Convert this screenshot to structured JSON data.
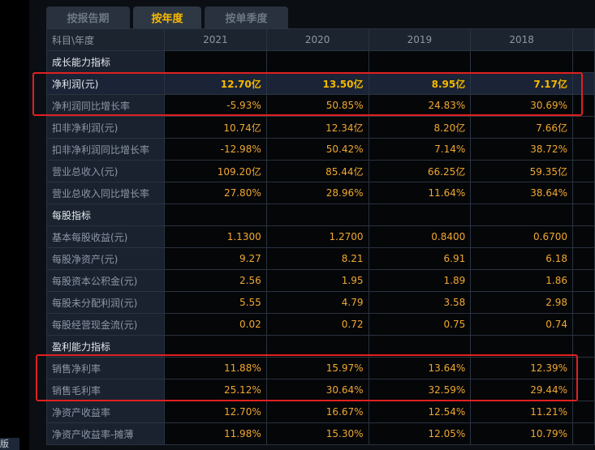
{
  "side_badge": "版",
  "tabs": [
    {
      "label": "按报告期"
    },
    {
      "label": "按年度",
      "active": true
    },
    {
      "label": "按单季度"
    }
  ],
  "header": {
    "label": "科目\\年度",
    "years": [
      "2021",
      "2020",
      "2019",
      "2018"
    ]
  },
  "rows": [
    {
      "label": "成长能力指标",
      "section": true,
      "values": [
        "",
        "",
        "",
        ""
      ]
    },
    {
      "label": "净利润(元)",
      "highlight": true,
      "values": [
        "12.70亿",
        "13.50亿",
        "8.95亿",
        "7.17亿"
      ]
    },
    {
      "label": "净利润同比增长率",
      "values": [
        "-5.93%",
        "50.85%",
        "24.83%",
        "30.69%"
      ]
    },
    {
      "label": "扣非净利润(元)",
      "values": [
        "10.74亿",
        "12.34亿",
        "8.20亿",
        "7.66亿"
      ]
    },
    {
      "label": "扣非净利润同比增长率",
      "values": [
        "-12.98%",
        "50.42%",
        "7.14%",
        "38.72%"
      ]
    },
    {
      "label": "营业总收入(元)",
      "values": [
        "109.20亿",
        "85.44亿",
        "66.25亿",
        "59.35亿"
      ]
    },
    {
      "label": "营业总收入同比增长率",
      "values": [
        "27.80%",
        "28.96%",
        "11.64%",
        "38.64%"
      ]
    },
    {
      "label": "每股指标",
      "section": true,
      "values": [
        "",
        "",
        "",
        ""
      ]
    },
    {
      "label": "基本每股收益(元)",
      "values": [
        "1.1300",
        "1.2700",
        "0.8400",
        "0.6700"
      ]
    },
    {
      "label": "每股净资产(元)",
      "values": [
        "9.27",
        "8.21",
        "6.91",
        "6.18"
      ]
    },
    {
      "label": "每股资本公积金(元)",
      "values": [
        "2.56",
        "1.95",
        "1.89",
        "1.86"
      ]
    },
    {
      "label": "每股未分配利润(元)",
      "values": [
        "5.55",
        "4.79",
        "3.58",
        "2.98"
      ]
    },
    {
      "label": "每股经营现金流(元)",
      "values": [
        "0.02",
        "0.72",
        "0.75",
        "0.74"
      ]
    },
    {
      "label": "盈利能力指标",
      "section": true,
      "values": [
        "",
        "",
        "",
        ""
      ]
    },
    {
      "label": "销售净利率",
      "values": [
        "11.88%",
        "15.97%",
        "13.64%",
        "12.39%"
      ]
    },
    {
      "label": "销售毛利率",
      "values": [
        "25.12%",
        "30.64%",
        "32.59%",
        "29.44%"
      ]
    },
    {
      "label": "净资产收益率",
      "values": [
        "12.70%",
        "16.67%",
        "12.54%",
        "11.21%"
      ]
    },
    {
      "label": "净资产收益率-摊薄",
      "values": [
        "11.98%",
        "15.30%",
        "12.05%",
        "10.79%"
      ]
    }
  ],
  "colors": {
    "value": "#f0a830",
    "active_tab": "#f5b800",
    "highlight_box": "#e02020"
  }
}
